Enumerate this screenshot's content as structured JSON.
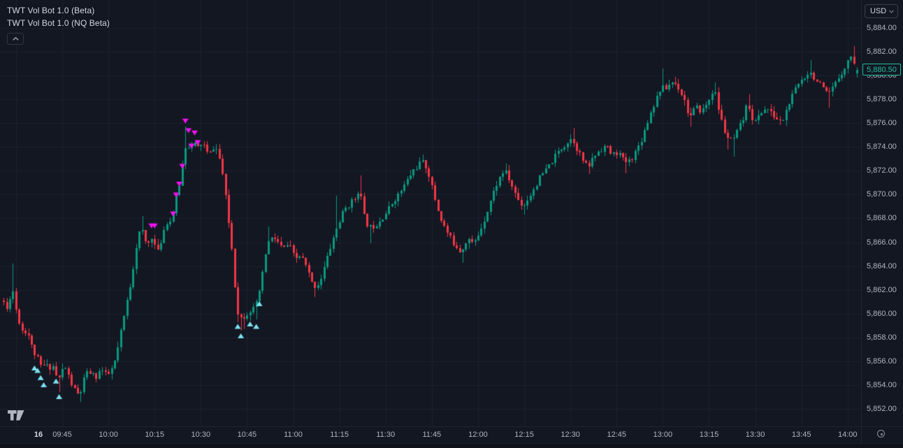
{
  "header": {
    "indicators": [
      {
        "label": "TWT Vol Bot 1.0 (Beta)"
      },
      {
        "label": "TWT Vol Bot 1.0 (NQ Beta)"
      }
    ]
  },
  "currency_selector": {
    "value": "USD"
  },
  "icons": {
    "legend_collapse": "chevron-up",
    "currency_caret": "chevron-down",
    "axis_settings": "gear",
    "logo": "tradingview"
  },
  "price_axis": {
    "labels": [
      "5,884.00",
      "5,882.00",
      "5,880.00",
      "5,878.00",
      "5,876.00",
      "5,874.00",
      "5,872.00",
      "5,870.00",
      "5,868.00",
      "5,866.00",
      "5,864.00",
      "5,862.00",
      "5,860.00",
      "5,858.00",
      "5,856.00",
      "5,854.00",
      "5,852.00"
    ],
    "values": [
      5884,
      5882,
      5880,
      5878,
      5876,
      5874,
      5872,
      5870,
      5868,
      5866,
      5864,
      5862,
      5860,
      5858,
      5856,
      5854,
      5852
    ],
    "last_price_label": "5,880.50"
  },
  "time_axis": {
    "date_label": "16",
    "labels": [
      "09:45",
      "10:00",
      "10:15",
      "10:30",
      "10:45",
      "11:00",
      "11:15",
      "11:30",
      "11:45",
      "12:00",
      "12:15",
      "12:30",
      "12:45",
      "13:00",
      "13:15",
      "13:30",
      "13:45",
      "14:00"
    ]
  },
  "colors": {
    "background": "#131722",
    "grid": "#1c212e",
    "up": "#089981",
    "down": "#f23645",
    "buy_marker": "#7ce0f0",
    "sell_marker": "#ef13ef",
    "axis_text": "#b2b5be",
    "last_price_accent": "#1dbf9e"
  },
  "chart_data": {
    "type": "candlestick",
    "interval_minutes": 1,
    "time_start": "09:26",
    "time_end": "14:03",
    "last_close": 5880.5,
    "price_range": [
      5852,
      5884
    ],
    "seed": 11,
    "anchors": [
      [
        "09:26",
        5861.3
      ],
      [
        "09:27",
        5860.6
      ],
      [
        "09:28",
        5860.1
      ],
      [
        "09:29",
        5862.8
      ],
      [
        "09:30",
        5861.0
      ],
      [
        "09:31",
        5859.8
      ],
      [
        "09:32",
        5858.9
      ],
      [
        "09:33",
        5858.3
      ],
      [
        "09:34",
        5858.8
      ],
      [
        "09:35",
        5857.6
      ],
      [
        "09:36",
        5856.9
      ],
      [
        "09:37",
        5856.4
      ],
      [
        "09:38",
        5855.9
      ],
      [
        "09:39",
        5855.3
      ],
      [
        "09:40",
        5856.0
      ],
      [
        "09:41",
        5855.2
      ],
      [
        "09:42",
        5855.8
      ],
      [
        "09:43",
        5855.4
      ],
      [
        "09:44",
        5854.2
      ],
      [
        "09:45",
        5854.9
      ],
      [
        "09:46",
        5855.7
      ],
      [
        "09:47",
        5855.1
      ],
      [
        "09:48",
        5854.4
      ],
      [
        "09:49",
        5853.8
      ],
      [
        "09:51",
        5853.0
      ],
      [
        "09:52",
        5854.0
      ],
      [
        "09:53",
        5854.9
      ],
      [
        "09:55",
        5855.1
      ],
      [
        "09:56",
        5854.5
      ],
      [
        "09:58",
        5855.4
      ],
      [
        "10:00",
        5854.7
      ],
      [
        "10:02",
        5855.5
      ],
      [
        "10:03",
        5856.4
      ],
      [
        "10:04",
        5857.8
      ],
      [
        "10:05",
        5859.1
      ],
      [
        "10:06",
        5860.4
      ],
      [
        "10:07",
        5861.8
      ],
      [
        "10:08",
        5862.9
      ],
      [
        "10:09",
        5865.0
      ],
      [
        "10:10",
        5866.3
      ],
      [
        "10:11",
        5867.3
      ],
      [
        "10:13",
        5865.6
      ],
      [
        "10:14",
        5866.4
      ],
      [
        "10:15",
        5866.6
      ],
      [
        "10:16",
        5864.9
      ],
      [
        "10:17",
        5865.4
      ],
      [
        "10:18",
        5866.8
      ],
      [
        "10:19",
        5867.4
      ],
      [
        "10:20",
        5868.0
      ],
      [
        "10:21",
        5867.6
      ],
      [
        "10:22",
        5869.4
      ],
      [
        "10:23",
        5870.1
      ],
      [
        "10:24",
        5871.6
      ],
      [
        "10:25",
        5873.4
      ],
      [
        "10:26",
        5874.8
      ],
      [
        "10:27",
        5873.4
      ],
      [
        "10:28",
        5874.6
      ],
      [
        "10:29",
        5873.8
      ],
      [
        "10:31",
        5874.4
      ],
      [
        "10:33",
        5873.2
      ],
      [
        "10:35",
        5874.2
      ],
      [
        "10:37",
        5872.6
      ],
      [
        "10:38",
        5870.8
      ],
      [
        "10:40",
        5866.6
      ],
      [
        "10:41",
        5864.4
      ],
      [
        "10:42",
        5860.4
      ],
      [
        "10:43",
        5859.9
      ],
      [
        "10:44",
        5859.4
      ],
      [
        "10:45",
        5860.2
      ],
      [
        "10:46",
        5860.0
      ],
      [
        "10:47",
        5860.6
      ],
      [
        "10:48",
        5860.2
      ],
      [
        "10:49",
        5861.4
      ],
      [
        "10:50",
        5862.4
      ],
      [
        "10:51",
        5864.2
      ],
      [
        "10:52",
        5865.9
      ],
      [
        "10:54",
        5866.4
      ],
      [
        "10:55",
        5866.2
      ],
      [
        "10:57",
        5865.4
      ],
      [
        "10:59",
        5865.8
      ],
      [
        "11:01",
        5864.6
      ],
      [
        "11:03",
        5864.9
      ],
      [
        "11:05",
        5863.7
      ],
      [
        "11:07",
        5862.2
      ],
      [
        "11:09",
        5862.6
      ],
      [
        "11:11",
        5864.3
      ],
      [
        "11:13",
        5866.0
      ],
      [
        "11:15",
        5867.5
      ],
      [
        "11:17",
        5868.7
      ],
      [
        "11:19",
        5869.3
      ],
      [
        "11:21",
        5869.8
      ],
      [
        "11:22",
        5870.9
      ],
      [
        "11:23",
        5868.5
      ],
      [
        "11:25",
        5867.2
      ],
      [
        "11:27",
        5867.4
      ],
      [
        "11:29",
        5868.0
      ],
      [
        "11:31",
        5868.6
      ],
      [
        "11:33",
        5869.5
      ],
      [
        "11:35",
        5870.1
      ],
      [
        "11:37",
        5871.0
      ],
      [
        "11:39",
        5871.9
      ],
      [
        "11:42",
        5872.8
      ],
      [
        "11:44",
        5872.2
      ],
      [
        "11:46",
        5870.1
      ],
      [
        "11:48",
        5868.2
      ],
      [
        "11:50",
        5867.0
      ],
      [
        "11:52",
        5866.1
      ],
      [
        "11:55",
        5865.2
      ],
      [
        "11:57",
        5866.4
      ],
      [
        "11:59",
        5865.8
      ],
      [
        "12:01",
        5866.9
      ],
      [
        "12:03",
        5868.3
      ],
      [
        "12:05",
        5869.9
      ],
      [
        "12:07",
        5871.2
      ],
      [
        "12:09",
        5872.1
      ],
      [
        "12:11",
        5871.0
      ],
      [
        "12:13",
        5869.8
      ],
      [
        "12:15",
        5869.0
      ],
      [
        "12:17",
        5869.8
      ],
      [
        "12:19",
        5870.7
      ],
      [
        "12:21",
        5871.6
      ],
      [
        "12:23",
        5872.2
      ],
      [
        "12:25",
        5873.0
      ],
      [
        "12:27",
        5873.8
      ],
      [
        "12:29",
        5874.3
      ],
      [
        "12:31",
        5874.8
      ],
      [
        "12:33",
        5873.6
      ],
      [
        "12:36",
        5872.2
      ],
      [
        "12:38",
        5873.2
      ],
      [
        "12:40",
        5873.8
      ],
      [
        "12:42",
        5874.1
      ],
      [
        "12:44",
        5873.3
      ],
      [
        "12:46",
        5873.6
      ],
      [
        "12:48",
        5872.7
      ],
      [
        "12:50",
        5872.9
      ],
      [
        "12:52",
        5873.8
      ],
      [
        "12:54",
        5875.0
      ],
      [
        "12:56",
        5876.6
      ],
      [
        "12:58",
        5877.9
      ],
      [
        "13:00",
        5879.1
      ],
      [
        "13:01",
        5878.8
      ],
      [
        "13:03",
        5879.4
      ],
      [
        "13:04",
        5879.5
      ],
      [
        "13:06",
        5878.8
      ],
      [
        "13:08",
        5877.6
      ],
      [
        "13:09",
        5876.4
      ],
      [
        "13:11",
        5877.3
      ],
      [
        "13:13",
        5877.0
      ],
      [
        "13:15",
        5877.7
      ],
      [
        "13:17",
        5879.0
      ],
      [
        "13:19",
        5876.6
      ],
      [
        "13:21",
        5874.9
      ],
      [
        "13:23",
        5874.4
      ],
      [
        "13:25",
        5875.5
      ],
      [
        "13:27",
        5876.6
      ],
      [
        "13:28",
        5877.9
      ],
      [
        "13:30",
        5875.9
      ],
      [
        "13:32",
        5876.8
      ],
      [
        "13:34",
        5877.3
      ],
      [
        "13:36",
        5876.7
      ],
      [
        "13:39",
        5876.0
      ],
      [
        "13:41",
        5877.4
      ],
      [
        "13:43",
        5878.6
      ],
      [
        "13:45",
        5879.5
      ],
      [
        "13:48",
        5880.4
      ],
      [
        "13:50",
        5879.7
      ],
      [
        "13:52",
        5879.0
      ],
      [
        "13:54",
        5878.3
      ],
      [
        "13:56",
        5879.1
      ],
      [
        "13:58",
        5880.1
      ],
      [
        "14:00",
        5880.9
      ],
      [
        "14:01",
        5881.5
      ],
      [
        "14:02",
        5881.8
      ],
      [
        "14:03",
        5880.5
      ]
    ],
    "spikes": [
      {
        "t": "09:29",
        "high": 5864.2
      },
      {
        "t": "09:44",
        "low": 5853.4
      },
      {
        "t": "09:51",
        "low": 5852.6
      },
      {
        "t": "10:11",
        "high": 5868.2
      },
      {
        "t": "10:25",
        "high": 5875.7
      },
      {
        "t": "10:42",
        "low": 5859.3
      },
      {
        "t": "10:43",
        "low": 5858.6
      },
      {
        "t": "10:44",
        "low": 5858.7
      },
      {
        "t": "10:46",
        "low": 5859.4
      },
      {
        "t": "10:48",
        "low": 5859.5
      },
      {
        "t": "10:52",
        "high": 5867.3
      },
      {
        "t": "11:07",
        "low": 5861.4
      },
      {
        "t": "11:14",
        "high": 5869.9
      },
      {
        "t": "11:22",
        "high": 5871.6
      },
      {
        "t": "11:25",
        "low": 5865.9
      },
      {
        "t": "11:42",
        "high": 5873.4
      },
      {
        "t": "11:55",
        "low": 5864.3
      },
      {
        "t": "12:09",
        "high": 5872.6
      },
      {
        "t": "12:15",
        "low": 5868.3
      },
      {
        "t": "12:31",
        "high": 5875.6
      },
      {
        "t": "12:36",
        "low": 5871.7
      },
      {
        "t": "12:48",
        "low": 5871.8
      },
      {
        "t": "13:00",
        "high": 5880.6
      },
      {
        "t": "13:04",
        "high": 5879.9
      },
      {
        "t": "13:09",
        "low": 5875.7
      },
      {
        "t": "13:17",
        "high": 5879.4
      },
      {
        "t": "13:21",
        "low": 5873.8
      },
      {
        "t": "13:23",
        "low": 5873.2
      },
      {
        "t": "13:28",
        "high": 5878.4
      },
      {
        "t": "13:48",
        "high": 5881.3
      },
      {
        "t": "13:54",
        "low": 5877.3
      },
      {
        "t": "14:02",
        "high": 5882.5
      }
    ],
    "markers": {
      "buy": [
        [
          "09:36",
          5855.4
        ],
        [
          "09:37",
          5855.2
        ],
        [
          "09:38",
          5854.6
        ],
        [
          "09:39",
          5854.0
        ],
        [
          "09:43",
          5854.3
        ],
        [
          "09:44",
          5853.0
        ],
        [
          "10:42",
          5858.9
        ],
        [
          "10:43",
          5858.1
        ],
        [
          "10:46",
          5859.1
        ],
        [
          "10:48",
          5858.9
        ],
        [
          "10:49",
          5860.8
        ]
      ],
      "sell": [
        [
          "10:14",
          5867.4
        ],
        [
          "10:15",
          5867.4
        ],
        [
          "10:21",
          5868.4
        ],
        [
          "10:22",
          5870.0
        ],
        [
          "10:23",
          5870.9
        ],
        [
          "10:24",
          5872.4
        ],
        [
          "10:25",
          5876.2
        ],
        [
          "10:26",
          5875.4
        ],
        [
          "10:27",
          5874.1
        ],
        [
          "10:28",
          5875.2
        ],
        [
          "10:29",
          5874.4
        ]
      ]
    }
  }
}
